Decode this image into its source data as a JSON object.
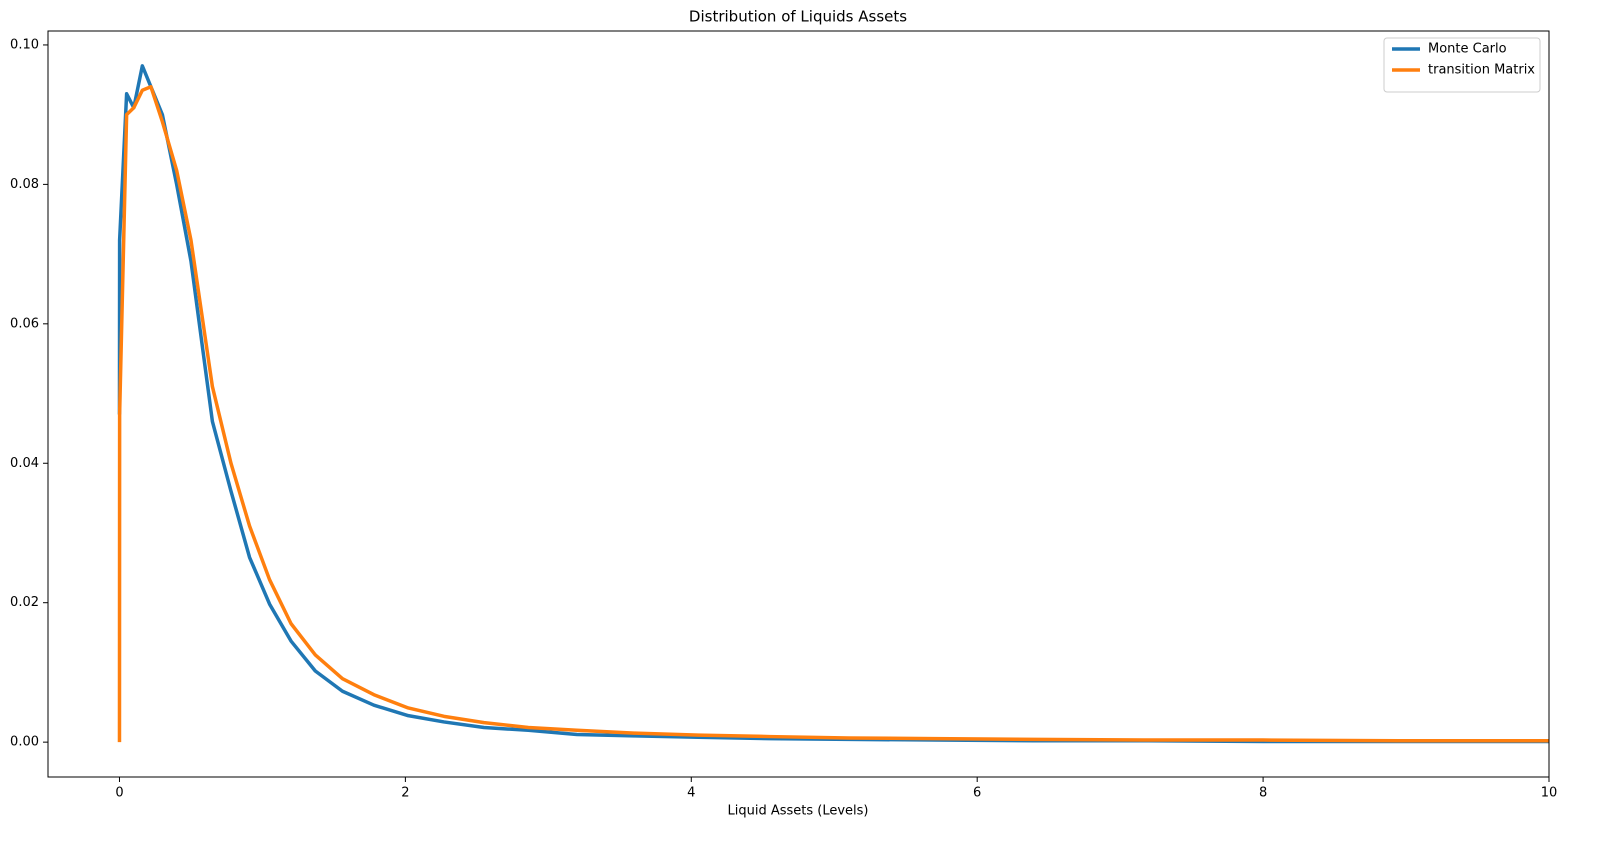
{
  "chart_data": {
    "type": "line",
    "title": "Distribution of Liquids Assets",
    "xlabel": "Liquid Assets (Levels)",
    "x": [
      0,
      0.001,
      0.05,
      0.1,
      0.16,
      0.22,
      0.3,
      0.4,
      0.5,
      0.65,
      0.78,
      0.91,
      1.05,
      1.2,
      1.37,
      1.56,
      1.78,
      2.02,
      2.27,
      2.55,
      2.86,
      3.2,
      3.6,
      4.05,
      4.55,
      5.1,
      5.7,
      6.4,
      7.2,
      8.0,
      9.0,
      10.0
    ],
    "series": [
      {
        "name": "Monte Carlo",
        "color": "#1f77b4",
        "values": [
          0.047,
          0.072,
          0.093,
          0.091,
          0.097,
          0.094,
          0.09,
          0.08,
          0.069,
          0.046,
          0.036,
          0.0265,
          0.0198,
          0.0145,
          0.0102,
          0.0073,
          0.0053,
          0.0038,
          0.0029,
          0.0021,
          0.0017,
          0.0011,
          0.0009,
          0.0007,
          0.0005,
          0.0004,
          0.0003,
          0.0002,
          0.0002,
          0.0001,
          0.0001,
          0.0001
        ]
      },
      {
        "name": "transition Matrix",
        "color": "#ff7f0e",
        "values": [
          0.0,
          0.047,
          0.09,
          0.091,
          0.0935,
          0.094,
          0.089,
          0.082,
          0.072,
          0.051,
          0.04,
          0.031,
          0.0233,
          0.017,
          0.0125,
          0.0091,
          0.0068,
          0.0049,
          0.0037,
          0.0028,
          0.0021,
          0.0017,
          0.0013,
          0.001,
          0.0008,
          0.0006,
          0.0005,
          0.0004,
          0.0003,
          0.0003,
          0.0002,
          0.0002
        ]
      }
    ],
    "xlim": [
      -0.5,
      10
    ],
    "xticks": [
      0,
      2,
      4,
      6,
      8,
      10
    ],
    "ylim": [
      -0.005,
      0.102
    ],
    "yticks": [
      {
        "value": 0,
        "label": "0.00"
      },
      {
        "value": 0.02,
        "label": "0.02"
      },
      {
        "value": 0.04,
        "label": "0.04"
      },
      {
        "value": 0.06,
        "label": "0.06"
      },
      {
        "value": 0.08,
        "label": "0.08"
      },
      {
        "value": 0.1,
        "label": "0.10"
      }
    ],
    "grid": false,
    "legend": "upper right"
  }
}
